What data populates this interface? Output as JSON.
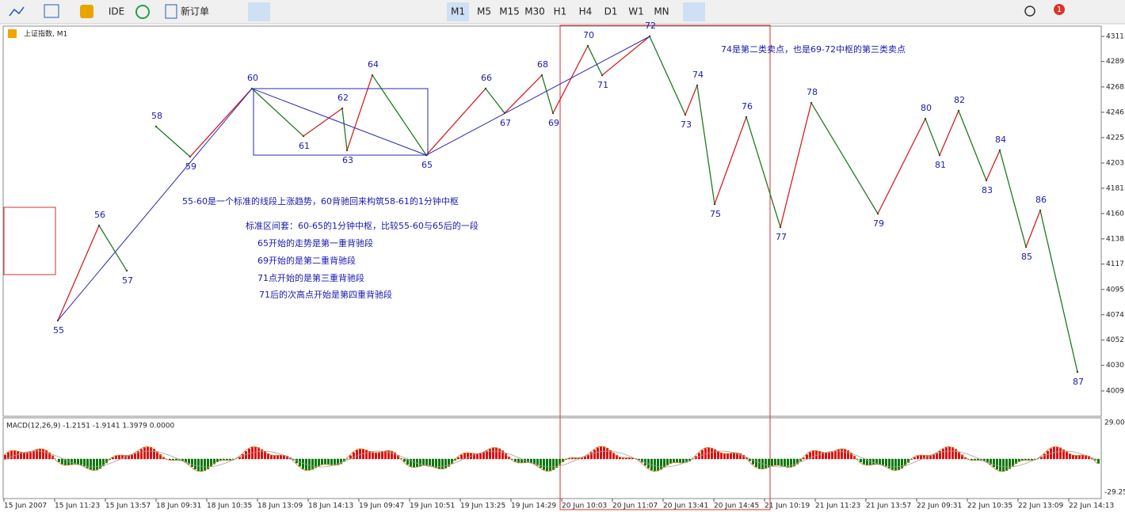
{
  "toolbar": {
    "ide": "IDE",
    "new_order": "新订单",
    "timeframes": [
      "M1",
      "M5",
      "M15",
      "M30",
      "H1",
      "H4",
      "D1",
      "W1",
      "MN"
    ],
    "badge": "1"
  },
  "chart": {
    "title": "上证指数, M1",
    "yticks": [
      4311.3,
      4289.9,
      {
        "value": 4268.2,
        "label": "4268."
      },
      4246.6,
      4225.0,
      {
        "value": 4203.4,
        "label": "4203.4"
      },
      4181.9,
      4160.3,
      4138.7,
      4117.2,
      4095.6,
      4074.0,
      4052.5,
      4030.9,
      4009.1
    ],
    "points": [
      {
        "label": "55",
        "price": 4069.1
      },
      {
        "label": "56",
        "price": 4150.1
      },
      {
        "label": "57",
        "price": 4111.6
      },
      {
        "label": "58",
        "price": 4234.4
      },
      {
        "label": "59",
        "price": 4208.8
      },
      {
        "label": "60",
        "price": 4266.8
      },
      {
        "label": "61",
        "price": 4226.3
      },
      {
        "label": "62",
        "price": 4249.9
      },
      {
        "label": "63",
        "price": 4214.2
      },
      {
        "label": "64",
        "price": 4278.2
      },
      {
        "label": "65",
        "price": 4210.1
      },
      {
        "label": "66",
        "price": 4266.8
      },
      {
        "label": "67",
        "price": 4245.9
      },
      {
        "label": "68",
        "price": 4278.2
      },
      {
        "label": "69",
        "price": 4245.9
      },
      {
        "label": "70",
        "price": 4303.2
      },
      {
        "label": "71",
        "price": 4278.2
      },
      {
        "label": "72",
        "price": 4311.3
      },
      {
        "label": "73",
        "price": 4244.5
      },
      {
        "label": "74",
        "price": 4269.5
      },
      {
        "label": "75",
        "price": 4168.3
      },
      {
        "label": "76",
        "price": 4242.5
      },
      {
        "label": "77",
        "price": 4148.7
      },
      {
        "label": "78",
        "price": 4254.6
      },
      {
        "label": "79",
        "price": 4160.2
      },
      {
        "label": "80",
        "price": 4241.1
      },
      {
        "label": "81",
        "price": 4210.1
      },
      {
        "label": "82",
        "price": 4247.9
      },
      {
        "label": "83",
        "price": 4188.5
      },
      {
        "label": "84",
        "price": 4214.2
      },
      {
        "label": "85",
        "price": 4131.9
      },
      {
        "label": "86",
        "price": 4162.9
      },
      {
        "label": "87",
        "price": 4025.3
      }
    ],
    "annotations": [
      "55-60是一个标准的线段上涨趋势，60背驰回来构筑58-61的1分钟中枢",
      "标准区间套：60-65的1分钟中枢，比较55-60与65后的一段",
      "65开始的走势是第一重背驰段",
      "69开始的是第二重背驰段",
      "71点开始的是第三重背驰段",
      "71后的次高点开始是第四重背驰段",
      "74是第二类卖点，也是69-72中枢的第三类卖点"
    ],
    "macd": {
      "label": "MACD(12,26,9) -1.2151 -1.9141 1.3979 0.0000",
      "top": "29.00",
      "bottom": "-29.25"
    },
    "xlabels": [
      "15 Jun 2007",
      "15 Jun 11:23",
      "15 Jun 13:57",
      "18 Jun 09:31",
      "18 Jun 10:35",
      "18 Jun 13:09",
      "18 Jun 14:13",
      "19 Jun 09:47",
      "19 Jun 10:51",
      "19 Jun 13:25",
      "19 Jun 14:29",
      "20 Jun 10:03",
      "20 Jun 11:07",
      "20 Jun 13:41",
      "20 Jun 14:45",
      "21 Jun 10:19",
      "21 Jun 11:23",
      "21 Jun 13:57",
      "22 Jun 09:31",
      "22 Jun 10:35",
      "22 Jun 13:09",
      "22 Jun 14:13"
    ]
  }
}
